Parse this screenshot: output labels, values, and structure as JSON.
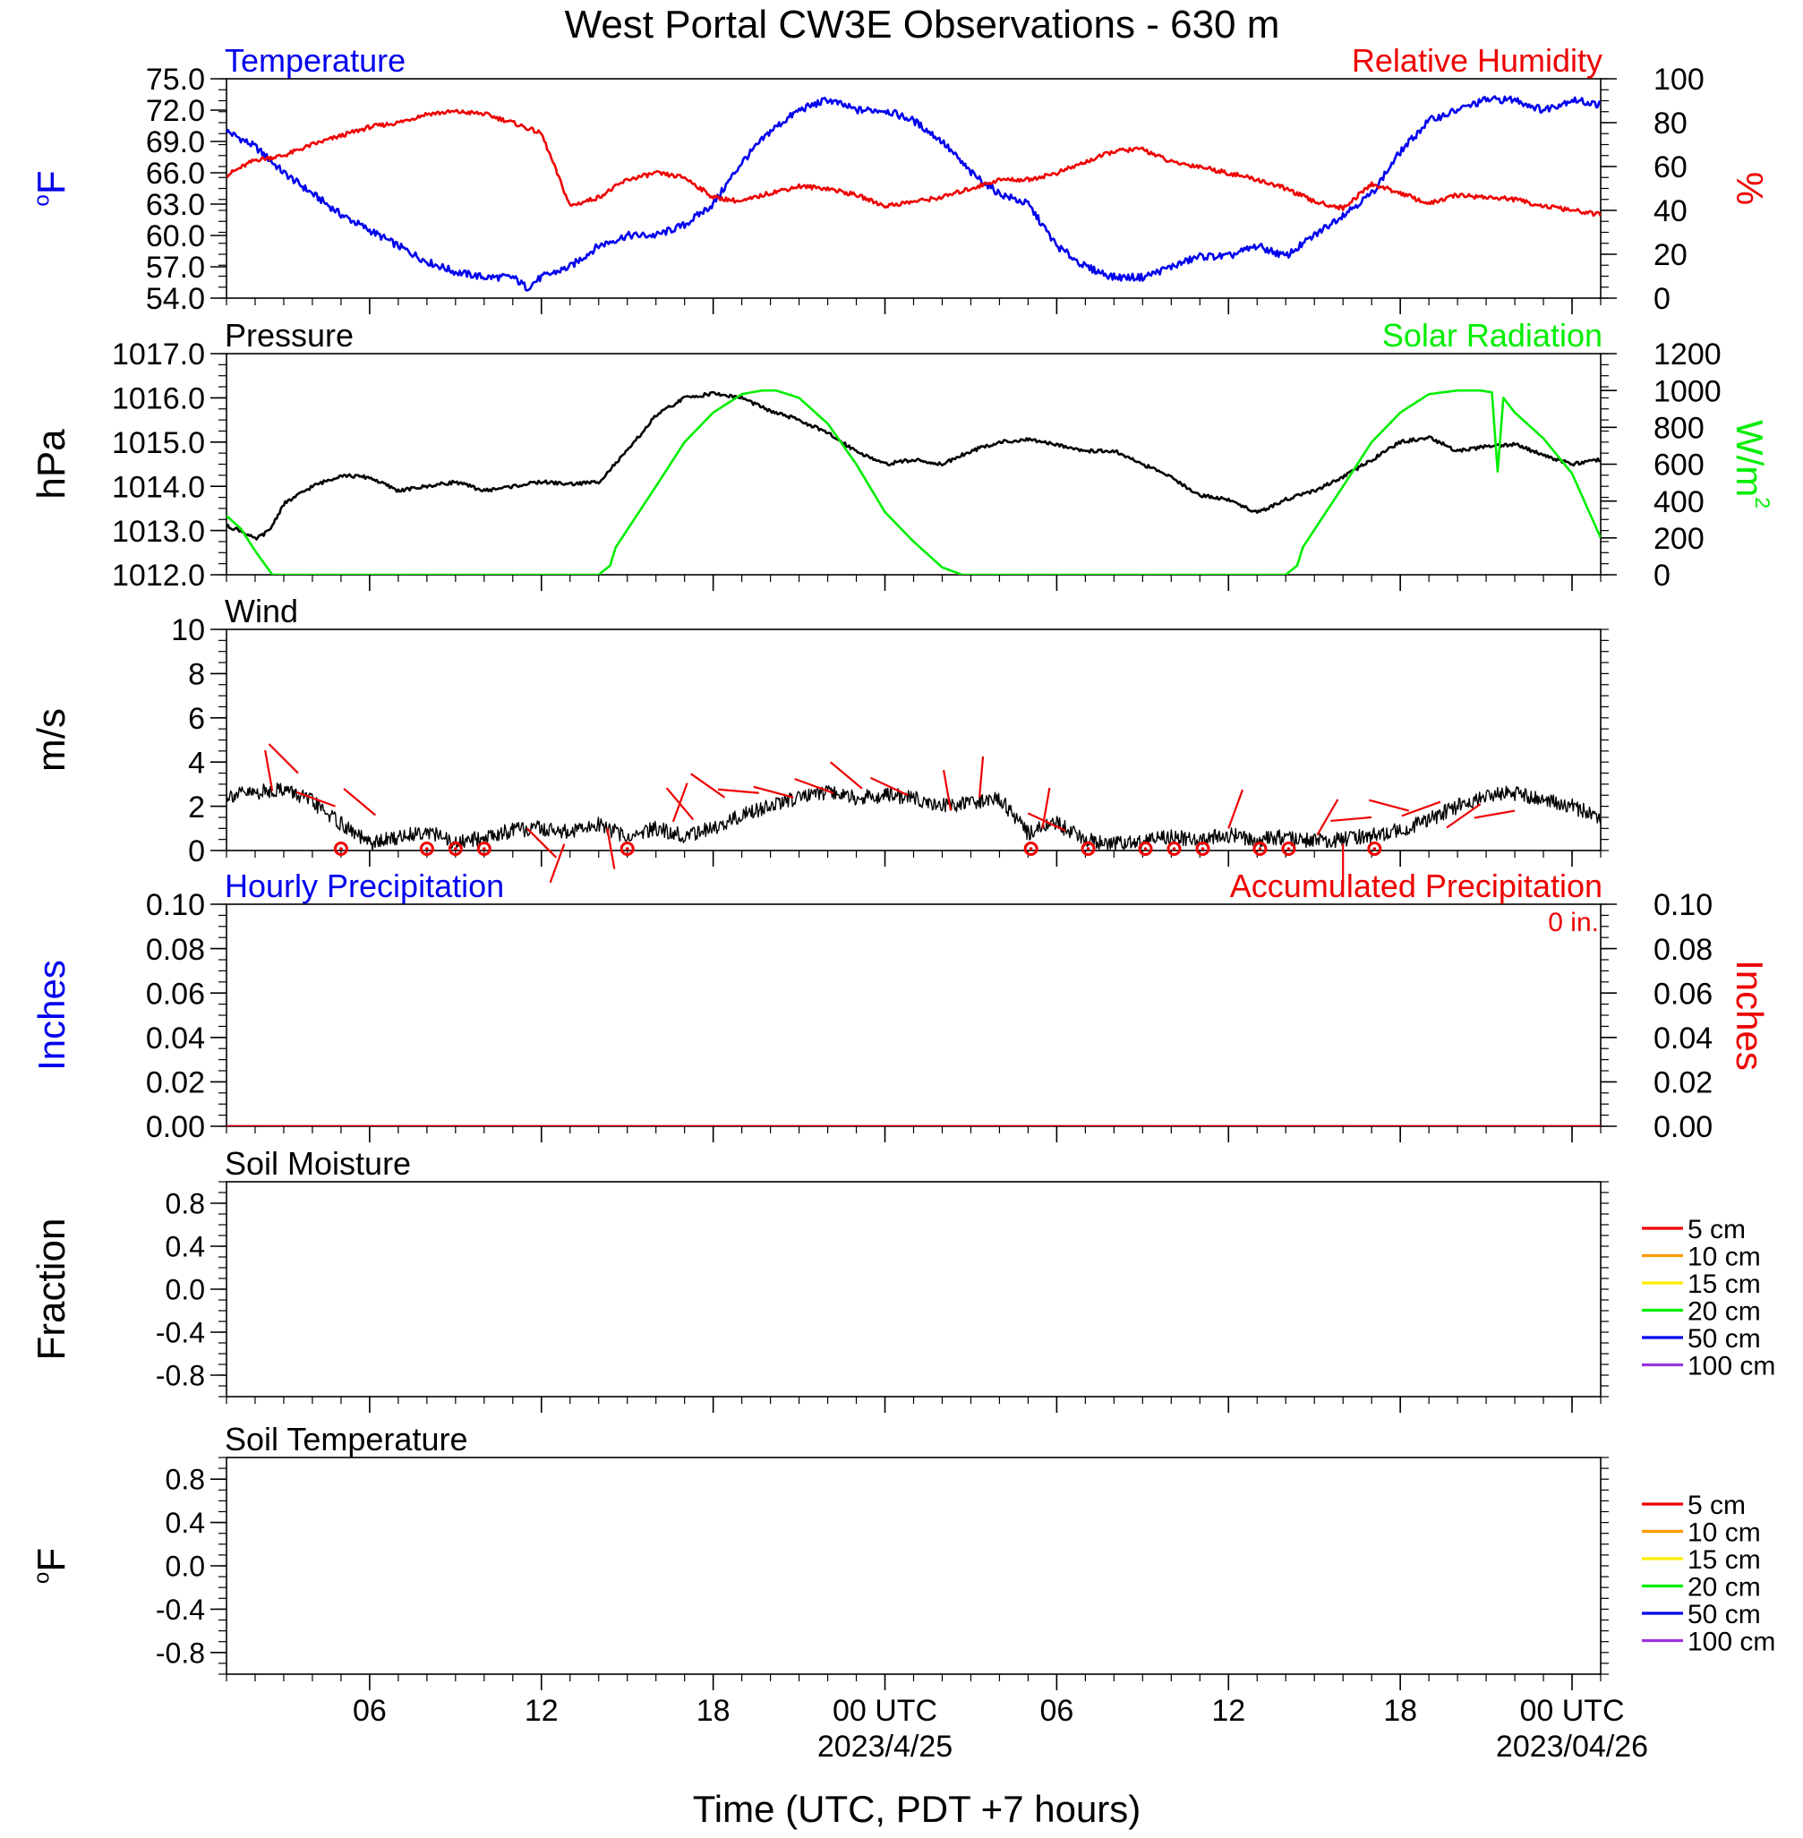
{
  "title": "West Portal CW3E Observations - 630 m",
  "xlabel": "Time (UTC, PDT +7 hours)",
  "time_axis": {
    "range_hours": [
      0,
      48
    ],
    "ticks": [
      {
        "h": 5,
        "label": "06",
        "date": ""
      },
      {
        "h": 11,
        "label": "12",
        "date": ""
      },
      {
        "h": 17,
        "label": "18",
        "date": ""
      },
      {
        "h": 23,
        "label": "00 UTC",
        "date": "2023/4/25"
      },
      {
        "h": 29,
        "label": "06",
        "date": ""
      },
      {
        "h": 35,
        "label": "12",
        "date": ""
      },
      {
        "h": 41,
        "label": "18",
        "date": ""
      },
      {
        "h": 47,
        "label": "00 UTC",
        "date": "2023/04/26"
      }
    ]
  },
  "colors": {
    "temperature": "#0000ee",
    "humidity": "#ee0000",
    "pressure": "#000000",
    "solar": "#00ee00",
    "wind": "#000000",
    "barb": "#ee0000",
    "precip_left": "#0000ee",
    "precip_right": "#ee0000"
  },
  "chart_data": [
    {
      "id": "temp_rh",
      "type": "line",
      "left_title": "Temperature",
      "right_title": "Relative Humidity",
      "left_ylabel": "oF",
      "right_ylabel": "%",
      "left_ylim": [
        54,
        75
      ],
      "left_ticks": [
        "75.0",
        "72.0",
        "69.0",
        "66.0",
        "63.0",
        "60.0",
        "57.0",
        "54.0"
      ],
      "right_ylim": [
        0,
        100
      ],
      "right_ticks": [
        "100",
        "80",
        "60",
        "40",
        "20",
        "0"
      ],
      "series": [
        {
          "axis": "left",
          "color_key": "temperature",
          "x": [
            0,
            1,
            2,
            3,
            4,
            5,
            6,
            7,
            8,
            9,
            10,
            10.5,
            11,
            12,
            13,
            14,
            15,
            16,
            17,
            18,
            19,
            20,
            21,
            22,
            23,
            24,
            25,
            26,
            27,
            28,
            29,
            30,
            31,
            32,
            33,
            34,
            35,
            36,
            37,
            38,
            39,
            40,
            41,
            42,
            43,
            44,
            45,
            46,
            47,
            48
          ],
          "y": [
            70,
            68.5,
            66,
            64,
            62,
            60.5,
            59,
            57.5,
            56.5,
            56,
            56,
            55,
            56,
            57,
            59,
            60,
            60,
            61,
            63,
            67,
            70,
            72,
            73,
            72,
            72,
            71,
            69,
            66,
            64,
            63,
            59,
            57,
            56,
            56,
            57,
            58,
            58,
            59,
            58,
            60,
            62,
            64,
            68,
            71,
            72,
            73,
            73,
            72,
            73,
            72.5
          ]
        },
        {
          "axis": "right",
          "color_key": "humidity",
          "x": [
            0,
            1,
            2,
            3,
            4,
            5,
            6,
            7,
            8,
            9,
            10,
            11,
            12,
            13,
            14,
            15,
            16,
            17,
            18,
            19,
            20,
            21,
            22,
            23,
            24,
            25,
            26,
            27,
            28,
            29,
            30,
            31,
            32,
            33,
            34,
            35,
            36,
            37,
            38,
            39,
            40,
            41,
            42,
            43,
            44,
            45,
            46,
            47,
            48
          ],
          "y": [
            56,
            63,
            65,
            70,
            74,
            78,
            80,
            84,
            85,
            84,
            80,
            75,
            42,
            46,
            54,
            57,
            55,
            46,
            44,
            48,
            51,
            50,
            47,
            42,
            44,
            46,
            50,
            54,
            54,
            57,
            62,
            67,
            68,
            62,
            60,
            57,
            54,
            50,
            44,
            41,
            52,
            48,
            43,
            47,
            46,
            45,
            42,
            40,
            38
          ]
        }
      ]
    },
    {
      "id": "pres_solar",
      "type": "line",
      "left_title": "Pressure",
      "right_title": "Solar Radiation",
      "left_ylabel": "hPa",
      "right_ylabel": "W/m2",
      "left_ylim": [
        1012,
        1017
      ],
      "left_ticks": [
        "1017.0",
        "1016.0",
        "1015.0",
        "1014.0",
        "1013.0",
        "1012.0"
      ],
      "right_ylim": [
        0,
        1200
      ],
      "right_ticks": [
        "1200",
        "1000",
        "800",
        "600",
        "400",
        "200",
        "0"
      ],
      "series": [
        {
          "axis": "left",
          "color_key": "pressure",
          "x": [
            0,
            0.5,
            1,
            1.5,
            2,
            3,
            4,
            5,
            6,
            7,
            8,
            9,
            10,
            11,
            12,
            13,
            14,
            15,
            16,
            17,
            18,
            19,
            20,
            21,
            22,
            23,
            24,
            25,
            26,
            27,
            28,
            29,
            30,
            31,
            32,
            33,
            34,
            35,
            36,
            37,
            38,
            39,
            40,
            41,
            42,
            43,
            44,
            45,
            46,
            47,
            48
          ],
          "y": [
            1013.1,
            1013,
            1012.8,
            1013,
            1013.6,
            1014,
            1014.25,
            1014.2,
            1013.9,
            1014,
            1014.1,
            1013.9,
            1014,
            1014.1,
            1014.05,
            1014.1,
            1014.8,
            1015.6,
            1016,
            1016.1,
            1016,
            1015.7,
            1015.5,
            1015.2,
            1014.8,
            1014.5,
            1014.6,
            1014.5,
            1014.8,
            1015,
            1015.05,
            1014.95,
            1014.8,
            1014.8,
            1014.5,
            1014.2,
            1013.8,
            1013.7,
            1013.4,
            1013.7,
            1013.9,
            1014.2,
            1014.6,
            1015,
            1015.1,
            1014.8,
            1014.9,
            1014.95,
            1014.7,
            1014.5,
            1014.6
          ]
        },
        {
          "axis": "right",
          "color_key": "solar",
          "x": [
            0,
            0.5,
            1,
            1.6,
            2,
            13,
            13.4,
            13.6,
            15,
            16,
            17,
            18,
            18.7,
            19.2,
            20,
            21,
            22,
            23,
            23.5,
            24,
            25,
            25.7,
            26,
            37,
            37.4,
            37.6,
            39,
            40,
            41,
            42,
            43,
            43.8,
            44.2,
            44.4,
            44.6,
            45,
            46,
            47,
            48
          ],
          "y": [
            320,
            250,
            130,
            0,
            0,
            0,
            50,
            150,
            480,
            720,
            880,
            980,
            1000,
            1000,
            960,
            820,
            600,
            340,
            260,
            180,
            40,
            0,
            0,
            0,
            50,
            150,
            480,
            720,
            880,
            980,
            1000,
            1000,
            990,
            560,
            960,
            880,
            740,
            550,
            200
          ]
        }
      ]
    },
    {
      "id": "wind",
      "type": "line",
      "left_title": "Wind",
      "left_ylabel": "m/s",
      "left_ylim": [
        0,
        10
      ],
      "left_ticks": [
        "10",
        "8",
        "6",
        "4",
        "2",
        "0"
      ],
      "series": [
        {
          "axis": "left",
          "color_key": "wind",
          "x": [
            0,
            1,
            2,
            3,
            4,
            5,
            6,
            7,
            8,
            9,
            10,
            11,
            12,
            13,
            14,
            15,
            16,
            17,
            18,
            19,
            20,
            21,
            22,
            23,
            24,
            25,
            26,
            27,
            27.5,
            28,
            29,
            30,
            31,
            32,
            33,
            34,
            35,
            36,
            37,
            38,
            39,
            40,
            41,
            42,
            43,
            44,
            45,
            46,
            47,
            48
          ],
          "y": [
            2.5,
            2.6,
            2.8,
            2.2,
            1.2,
            0.3,
            0.6,
            0.9,
            0.3,
            0.6,
            0.9,
            1.0,
            0.8,
            1.2,
            0.6,
            1.0,
            0.7,
            1.0,
            1.6,
            2.0,
            2.4,
            2.6,
            2.4,
            2.5,
            2.4,
            2.0,
            2.2,
            2.4,
            1.5,
            0.8,
            1.2,
            0.5,
            0.3,
            0.4,
            0.6,
            0.5,
            0.7,
            0.5,
            0.6,
            0.4,
            0.5,
            0.7,
            0.9,
            1.4,
            2.0,
            2.5,
            2.6,
            2.3,
            2.0,
            1.5
          ]
        }
      ],
      "barbs": [
        {
          "h": 1.6,
          "spd": 2.7,
          "dir": 350
        },
        {
          "h": 2.5,
          "spd": 3.5,
          "dir": 315
        },
        {
          "h": 3.8,
          "spd": 2.0,
          "dir": 290
        },
        {
          "h": 5.2,
          "spd": 1.6,
          "dir": 310
        },
        {
          "h": 10.5,
          "spd": 1.0,
          "dir": 135
        },
        {
          "h": 11.8,
          "spd": 0.3,
          "dir": 200
        },
        {
          "h": 13.3,
          "spd": 1.0,
          "dir": 170
        },
        {
          "h": 15.6,
          "spd": 1.3,
          "dir": 20
        },
        {
          "h": 16.3,
          "spd": 1.4,
          "dir": 320
        },
        {
          "h": 17.4,
          "spd": 2.4,
          "dir": 305
        },
        {
          "h": 18.6,
          "spd": 2.6,
          "dir": 275
        },
        {
          "h": 19.8,
          "spd": 2.4,
          "dir": 285
        },
        {
          "h": 21.2,
          "spd": 2.6,
          "dir": 290
        },
        {
          "h": 22.2,
          "spd": 2.8,
          "dir": 310
        },
        {
          "h": 23.8,
          "spd": 2.5,
          "dir": 295
        },
        {
          "h": 25.3,
          "spd": 1.8,
          "dir": 350
        },
        {
          "h": 26.3,
          "spd": 2.4,
          "dir": 5
        },
        {
          "h": 28.5,
          "spd": 1.0,
          "dir": 10
        },
        {
          "h": 29.3,
          "spd": 0.9,
          "dir": 295
        },
        {
          "h": 35,
          "spd": 1.0,
          "dir": 20
        },
        {
          "h": 38.1,
          "spd": 0.7,
          "dir": 30
        },
        {
          "h": 39,
          "spd": 0.3,
          "dir": 180
        },
        {
          "h": 40,
          "spd": 1.5,
          "dir": 265
        },
        {
          "h": 41.3,
          "spd": 1.8,
          "dir": 285
        },
        {
          "h": 42.4,
          "spd": 2.2,
          "dir": 250
        },
        {
          "h": 43.8,
          "spd": 2.1,
          "dir": 235
        },
        {
          "h": 45,
          "spd": 1.8,
          "dir": 260
        }
      ],
      "calm": [
        4,
        7,
        8,
        9,
        14,
        28.1,
        30.1,
        32.1,
        33.1,
        34.1,
        36.1,
        37.1,
        40.1
      ]
    },
    {
      "id": "precip",
      "type": "line",
      "left_title": "Hourly Precipitation",
      "right_title": "Accumulated Precipitation",
      "annotation": "0 in.",
      "left_ylabel": "Inches",
      "right_ylabel": "Inches",
      "left_ylim": [
        0,
        0.1
      ],
      "left_ticks": [
        "0.10",
        "0.08",
        "0.06",
        "0.04",
        "0.02",
        "0.00"
      ],
      "right_ylim": [
        0,
        0.1
      ],
      "right_ticks": [
        "0.10",
        "0.08",
        "0.06",
        "0.04",
        "0.02",
        "0.00"
      ],
      "series": [
        {
          "axis": "left",
          "color_key": "precip_left",
          "x": [
            0,
            48
          ],
          "y": [
            0,
            0
          ]
        },
        {
          "axis": "right",
          "color_key": "precip_right",
          "x": [
            0,
            48
          ],
          "y": [
            0,
            0
          ]
        }
      ]
    },
    {
      "id": "soil_moist",
      "type": "line",
      "left_title": "Soil Moisture",
      "left_ylabel": "Fraction",
      "left_ylim": [
        -1,
        1
      ],
      "left_ticks": [
        "0.8",
        "0.4",
        "0.0",
        "-0.4",
        "-0.8"
      ],
      "legend": [
        "5 cm",
        "10 cm",
        "15 cm",
        "20 cm",
        "50 cm",
        "100 cm"
      ],
      "series": []
    },
    {
      "id": "soil_temp",
      "type": "line",
      "left_title": "Soil Temperature",
      "left_ylabel": "oF",
      "left_ylim": [
        -1,
        1
      ],
      "left_ticks": [
        "0.8",
        "0.4",
        "0.0",
        "-0.4",
        "-0.8"
      ],
      "legend": [
        "5 cm",
        "10 cm",
        "15 cm",
        "20 cm",
        "50 cm",
        "100 cm"
      ],
      "series": []
    }
  ],
  "legend_colors": [
    "#ee0000",
    "#ff9900",
    "#ffee00",
    "#00ee00",
    "#0000ee",
    "#9933dd"
  ]
}
